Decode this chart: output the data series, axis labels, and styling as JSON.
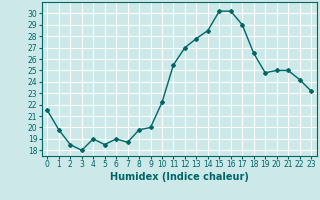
{
  "x": [
    0,
    1,
    2,
    3,
    4,
    5,
    6,
    7,
    8,
    9,
    10,
    11,
    12,
    13,
    14,
    15,
    16,
    17,
    18,
    19,
    20,
    21,
    22,
    23
  ],
  "y": [
    21.5,
    19.8,
    18.5,
    18.0,
    19.0,
    18.5,
    19.0,
    18.7,
    19.8,
    20.0,
    22.2,
    25.5,
    27.0,
    27.8,
    28.5,
    30.2,
    30.2,
    29.0,
    26.5,
    24.8,
    25.0,
    25.0,
    24.2,
    23.2
  ],
  "line_color": "#006666",
  "marker": "D",
  "markersize": 2,
  "linewidth": 1.0,
  "xlabel": "Humidex (Indice chaleur)",
  "ylim": [
    17.5,
    31.0
  ],
  "xlim": [
    -0.5,
    23.5
  ],
  "yticks": [
    18,
    19,
    20,
    21,
    22,
    23,
    24,
    25,
    26,
    27,
    28,
    29,
    30
  ],
  "xticks": [
    0,
    1,
    2,
    3,
    4,
    5,
    6,
    7,
    8,
    9,
    10,
    11,
    12,
    13,
    14,
    15,
    16,
    17,
    18,
    19,
    20,
    21,
    22,
    23
  ],
  "bg_color": "#cce8e8",
  "grid_color": "#ffffff",
  "tick_color": "#006666",
  "label_fontsize": 7,
  "tick_fontsize": 5.5
}
